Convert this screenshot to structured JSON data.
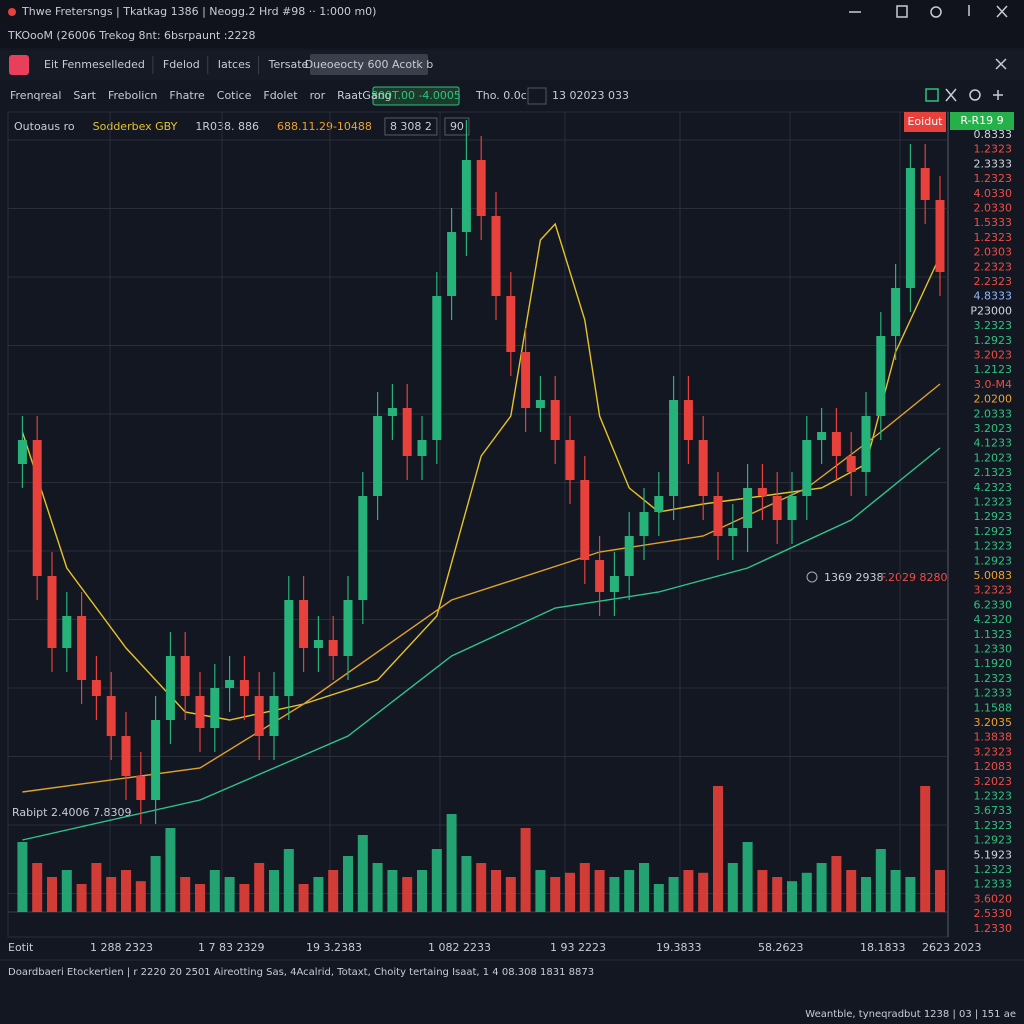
{
  "window": {
    "title": "Thwe Fretersngs | Tkatkag 1386 | Neogg.2 Hrd #98 ·· 1:000 m0)",
    "subtitle": "TKOooM (26006 Trekog 8nt: 6bsrpaunt :2228"
  },
  "tabs": [
    "Eit Fenmeselleded",
    "Fdelod",
    "Iatces",
    "Tersate"
  ],
  "active_tab": "Dueoeocty 600 Acotk b",
  "toolbar": {
    "items": [
      "Frenqreal",
      "Sart",
      "Frebolicn",
      "Fhatre",
      "Cotice",
      "Fdolet",
      "ror",
      "RaatGang"
    ],
    "price_box": "800T.00 -4.0005",
    "info": [
      "Tho. 0.0c",
      "13 02023 033"
    ]
  },
  "legend": [
    "Outoaus ro",
    "Sodderbex GBY",
    "1R038. 886",
    "688.11.29-10488",
    "8 308 2",
    "90"
  ],
  "chart_data": {
    "type": "candlestick",
    "ylim": [
      0,
      100
    ],
    "up_color": "#26b37a",
    "down_color": "#e8403a",
    "open": [
      56,
      59,
      42,
      33,
      37,
      29,
      27,
      22,
      17,
      14,
      24,
      32,
      27,
      23,
      28,
      29,
      27,
      22,
      27,
      39,
      33,
      34,
      32,
      39,
      52,
      62,
      63,
      57,
      59,
      77,
      85,
      94,
      87,
      77,
      70,
      63,
      64,
      59,
      54,
      44,
      40,
      42,
      47,
      50,
      52,
      64,
      59,
      52,
      47,
      48,
      53,
      52,
      49,
      52,
      59,
      60,
      57,
      55,
      62,
      72,
      78,
      93,
      89
    ],
    "high": [
      62,
      62,
      45,
      40,
      40,
      32,
      30,
      25,
      20,
      27,
      35,
      35,
      30,
      31,
      32,
      32,
      30,
      30,
      42,
      42,
      37,
      37,
      42,
      55,
      65,
      66,
      66,
      62,
      80,
      88,
      99,
      97,
      90,
      80,
      73,
      67,
      67,
      62,
      57,
      47,
      45,
      50,
      53,
      55,
      67,
      67,
      62,
      55,
      51,
      56,
      56,
      55,
      55,
      62,
      63,
      63,
      60,
      65,
      75,
      81,
      96,
      96,
      92
    ],
    "low": [
      53,
      39,
      30,
      30,
      26,
      24,
      19,
      14,
      11,
      11,
      21,
      24,
      20,
      20,
      25,
      24,
      19,
      19,
      24,
      30,
      30,
      29,
      29,
      36,
      49,
      59,
      54,
      54,
      56,
      74,
      82,
      84,
      74,
      67,
      60,
      60,
      56,
      51,
      41,
      37,
      37,
      39,
      44,
      47,
      49,
      56,
      49,
      44,
      44,
      45,
      49,
      46,
      46,
      49,
      56,
      54,
      52,
      52,
      59,
      69,
      75,
      86,
      77
    ],
    "close": [
      59,
      42,
      33,
      37,
      29,
      27,
      22,
      17,
      14,
      24,
      32,
      27,
      23,
      28,
      29,
      27,
      22,
      27,
      39,
      33,
      34,
      32,
      39,
      52,
      62,
      63,
      57,
      59,
      77,
      85,
      94,
      87,
      77,
      70,
      63,
      64,
      59,
      54,
      44,
      40,
      42,
      47,
      50,
      52,
      64,
      59,
      52,
      47,
      48,
      53,
      52,
      49,
      52,
      59,
      60,
      57,
      55,
      62,
      72,
      78,
      93,
      89,
      80
    ],
    "volume": {
      "ylim": [
        0,
        100
      ],
      "values": [
        50,
        35,
        25,
        30,
        20,
        35,
        25,
        30,
        22,
        40,
        60,
        25,
        20,
        30,
        25,
        20,
        35,
        30,
        45,
        20,
        25,
        30,
        40,
        55,
        35,
        30,
        25,
        30,
        45,
        70,
        40,
        35,
        30,
        25,
        60,
        30,
        25,
        28,
        35,
        30,
        25,
        30,
        35,
        20,
        25,
        30,
        28,
        90,
        35,
        50,
        30,
        25,
        22,
        28,
        35,
        40,
        30,
        25,
        45,
        30,
        25,
        90,
        30
      ]
    },
    "lines": [
      {
        "color": "#e6c229",
        "x": [
          0,
          3,
          7,
          11,
          14,
          19,
          24,
          28,
          31,
          33,
          35,
          36,
          38,
          39,
          41,
          43,
          46,
          50,
          54,
          57,
          59,
          62
        ],
        "values": [
          60,
          43,
          33,
          25,
          24,
          26,
          29,
          37,
          57,
          62,
          84,
          86,
          74,
          62,
          53,
          50,
          51,
          52,
          53,
          56,
          70,
          82
        ]
      },
      {
        "color": "#e0a12a",
        "x": [
          0,
          12,
          19,
          29,
          39,
          46,
          53,
          58,
          62
        ],
        "values": [
          15,
          18,
          26,
          39,
          45,
          47,
          53,
          60,
          66
        ]
      },
      {
        "color": "#2fc48a",
        "x": [
          0,
          12,
          22,
          29,
          36,
          43,
          49,
          56,
          62
        ],
        "values": [
          9,
          14,
          22,
          32,
          38,
          40,
          43,
          49,
          58
        ]
      }
    ],
    "badges": {
      "sell": "Eoidut",
      "buy": "R-R19 9"
    },
    "annotations": {
      "price": "1369 2938",
      "change": "F.2029 8280",
      "volume": "Rabipt 2.4006 7.8309"
    },
    "x_labels": [
      "Eotit",
      "1 288 2323",
      "1 7 83 2329",
      "19 3.2383",
      "1 082 2233",
      "1 93 2223",
      "19.3833",
      "58.2623",
      "18.1833",
      "2623 2023"
    ],
    "price_labels": [
      {
        "text": "0.8333",
        "color": "#d0d4dc"
      },
      {
        "text": "1.2323",
        "color": "#ef4d45"
      },
      {
        "text": "2.3333",
        "color": "#d0d4dc"
      },
      {
        "text": "1.2323",
        "color": "#ef4d45"
      },
      {
        "text": "4.0330",
        "color": "#ef4d45"
      },
      {
        "text": "2.0330",
        "color": "#ef4d45"
      },
      {
        "text": "1.5333",
        "color": "#ef4d45"
      },
      {
        "text": "1.2323",
        "color": "#ef4d45"
      },
      {
        "text": "2.0303",
        "color": "#ef4d45"
      },
      {
        "text": "2.2323",
        "color": "#ef4d45"
      },
      {
        "text": "2.2323",
        "color": "#ef4d45"
      },
      {
        "text": "4.8333",
        "color": "#8fb8ff"
      },
      {
        "text": "P23000",
        "color": "#d0d4dc"
      },
      {
        "text": "3.2323",
        "color": "#2fc27d"
      },
      {
        "text": "1.2923",
        "color": "#2fc27d"
      },
      {
        "text": "3.2023",
        "color": "#ef4d45"
      },
      {
        "text": "1.2123",
        "color": "#2fc27d"
      },
      {
        "text": "3.0-M4",
        "color": "#ef4d45"
      },
      {
        "text": "2.0200",
        "color": "#f0a030"
      },
      {
        "text": "2.0333",
        "color": "#2fc27d"
      },
      {
        "text": "3.2023",
        "color": "#2fc27d"
      },
      {
        "text": "4.1233",
        "color": "#2fc27d"
      },
      {
        "text": "1.2023",
        "color": "#2fc27d"
      },
      {
        "text": "2.1323",
        "color": "#2fc27d"
      },
      {
        "text": "4.2323",
        "color": "#2fc27d"
      },
      {
        "text": "1.2323",
        "color": "#2fc27d"
      },
      {
        "text": "1.2923",
        "color": "#2fc27d"
      },
      {
        "text": "1.2923",
        "color": "#2fc27d"
      },
      {
        "text": "1.2323",
        "color": "#2fc27d"
      },
      {
        "text": "1.2923",
        "color": "#2fc27d"
      },
      {
        "text": "5.0083",
        "color": "#f0a030"
      },
      {
        "text": "3.2323",
        "color": "#ef4d45"
      },
      {
        "text": "6.2330",
        "color": "#2fc27d"
      },
      {
        "text": "4.2320",
        "color": "#2fc27d"
      },
      {
        "text": "1.1323",
        "color": "#2fc27d"
      },
      {
        "text": "1.2330",
        "color": "#2fc27d"
      },
      {
        "text": "1.1920",
        "color": "#2fc27d"
      },
      {
        "text": "1.2323",
        "color": "#2fc27d"
      },
      {
        "text": "1.2333",
        "color": "#2fc27d"
      },
      {
        "text": "1.1588",
        "color": "#2fc27d"
      },
      {
        "text": "3.2035",
        "color": "#f0a030"
      },
      {
        "text": "1.3838",
        "color": "#ef4d45"
      },
      {
        "text": "3.2323",
        "color": "#ef4d45"
      },
      {
        "text": "1.2083",
        "color": "#ef4d45"
      },
      {
        "text": "3.2023",
        "color": "#ef4d45"
      },
      {
        "text": "1.2323",
        "color": "#2fc27d"
      },
      {
        "text": "3.6733",
        "color": "#2fc27d"
      },
      {
        "text": "1.2323",
        "color": "#2fc27d"
      },
      {
        "text": "1.2923",
        "color": "#2fc27d"
      },
      {
        "text": "5.1923",
        "color": "#d0d4dc"
      },
      {
        "text": "1.2323",
        "color": "#2fc27d"
      },
      {
        "text": "1.2333",
        "color": "#2fc27d"
      },
      {
        "text": "3.6020",
        "color": "#ef4d45"
      },
      {
        "text": "2.5330",
        "color": "#ef4d45"
      },
      {
        "text": "1.2330",
        "color": "#ef4d45"
      }
    ]
  },
  "status": {
    "left": "Doardbaeri Etockertien | r 2220 20 2501 Aireotting Sas, 4Acalrid, Totaxt, Choity tertaing Isaat, 1 4 08.308 1831 8873",
    "right": "Weantble, tyneqradbut 1238 | 03 | 151 ae"
  }
}
